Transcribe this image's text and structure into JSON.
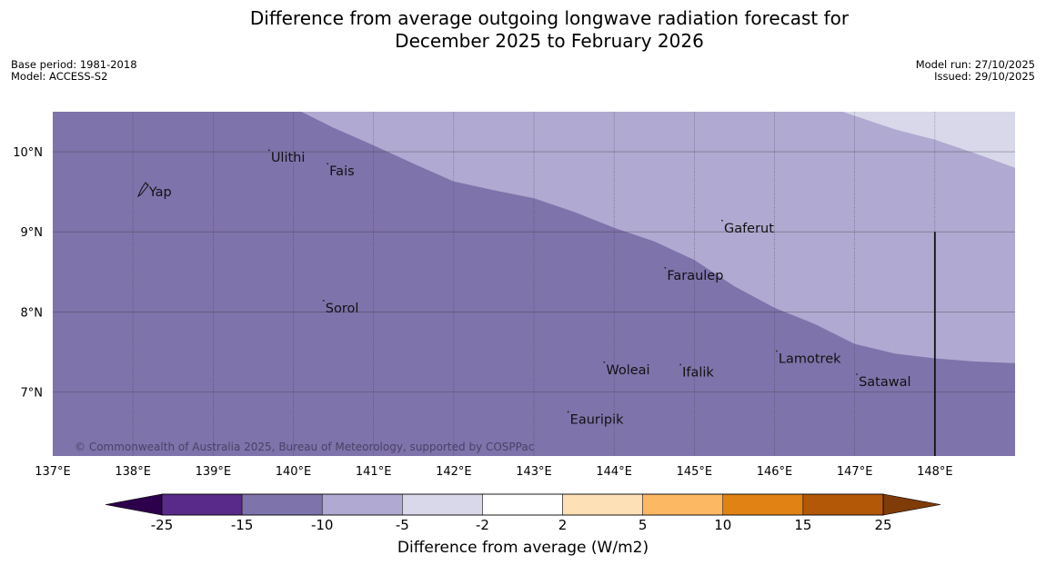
{
  "title": {
    "line1": "Difference from average outgoing longwave radiation forecast for",
    "line2": "December 2025 to February 2026"
  },
  "meta": {
    "base_period": "Base period: 1981-2018",
    "model": "Model: ACCESS-S2",
    "model_run": "Model run: 27/10/2025",
    "issued": "Issued: 29/10/2025"
  },
  "map": {
    "lon_range": [
      137,
      149
    ],
    "lat_range": [
      6.2,
      10.5
    ],
    "lon_ticks": [
      {
        "value": 137,
        "label": "137°E"
      },
      {
        "value": 138,
        "label": "138°E"
      },
      {
        "value": 139,
        "label": "139°E"
      },
      {
        "value": 140,
        "label": "140°E"
      },
      {
        "value": 141,
        "label": "141°E"
      },
      {
        "value": 142,
        "label": "142°E"
      },
      {
        "value": 143,
        "label": "143°E"
      },
      {
        "value": 144,
        "label": "144°E"
      },
      {
        "value": 145,
        "label": "145°E"
      },
      {
        "value": 146,
        "label": "146°E"
      },
      {
        "value": 147,
        "label": "147°E"
      },
      {
        "value": 148,
        "label": "148°E"
      }
    ],
    "lat_ticks": [
      {
        "value": 10,
        "label": "10°N"
      },
      {
        "value": 9,
        "label": "9°N"
      },
      {
        "value": 8,
        "label": "8°N"
      },
      {
        "value": 7,
        "label": "7°N"
      }
    ],
    "places": [
      {
        "name": "Yap",
        "lon": 138.2,
        "lat": 9.5
      },
      {
        "name": "Ulithi",
        "lon": 139.72,
        "lat": 9.93
      },
      {
        "name": "Fais",
        "lon": 140.45,
        "lat": 9.76
      },
      {
        "name": "Gaferut",
        "lon": 145.37,
        "lat": 9.05
      },
      {
        "name": "Faraulep",
        "lon": 144.66,
        "lat": 8.46
      },
      {
        "name": "Sorol",
        "lon": 140.4,
        "lat": 8.05
      },
      {
        "name": "Woleai",
        "lon": 143.9,
        "lat": 7.28
      },
      {
        "name": "Ifalik",
        "lon": 144.85,
        "lat": 7.25
      },
      {
        "name": "Lamotrek",
        "lon": 146.05,
        "lat": 7.42
      },
      {
        "name": "Satawal",
        "lon": 147.05,
        "lat": 7.13
      },
      {
        "name": "Eauripik",
        "lon": 143.45,
        "lat": 6.66
      }
    ],
    "boundary_lines": [
      {
        "name": "region-boundary-line",
        "lon": 148.0,
        "lat_from": 6.2,
        "lat_to": 9.0
      }
    ],
    "contours": {
      "deep_to_mid_boundary": [
        [
          140.1,
          10.5
        ],
        [
          140.5,
          10.3
        ],
        [
          141.0,
          10.08
        ],
        [
          141.5,
          9.85
        ],
        [
          142.0,
          9.63
        ],
        [
          142.5,
          9.52
        ],
        [
          143.0,
          9.42
        ],
        [
          143.5,
          9.25
        ],
        [
          144.0,
          9.05
        ],
        [
          144.5,
          8.88
        ],
        [
          145.0,
          8.65
        ],
        [
          145.5,
          8.32
        ],
        [
          146.0,
          8.05
        ],
        [
          146.5,
          7.85
        ],
        [
          147.0,
          7.6
        ],
        [
          147.5,
          7.48
        ],
        [
          148.0,
          7.42
        ],
        [
          148.5,
          7.38
        ],
        [
          149.0,
          7.36
        ]
      ],
      "mid_to_light_boundary": [
        [
          146.85,
          10.5
        ],
        [
          147.5,
          10.28
        ],
        [
          148.0,
          10.15
        ],
        [
          148.5,
          9.98
        ],
        [
          149.0,
          9.8
        ]
      ]
    },
    "fill_colors": {
      "minus15_to_minus10": "#7f73ab",
      "minus10_to_minus5": "#b0a9d1",
      "minus5_to_minus2": "#d8d8ea"
    },
    "copyright": "© Commonwealth of Australia 2025, Bureau of Meteorology, supported by COSPPac"
  },
  "colorbar": {
    "title": "Difference from average (W/m2)",
    "ticks": [
      "-25",
      "-15",
      "-10",
      "-5",
      "-2",
      "2",
      "5",
      "10",
      "15",
      "25"
    ],
    "colors": [
      "#592a8a",
      "#7f73ab",
      "#b0a9d1",
      "#d8d8ea",
      "#ffffff",
      "#fee0b6",
      "#fdb863",
      "#e08214",
      "#b35806"
    ],
    "under_color": "#2d004b",
    "over_color": "#7f3b08"
  }
}
